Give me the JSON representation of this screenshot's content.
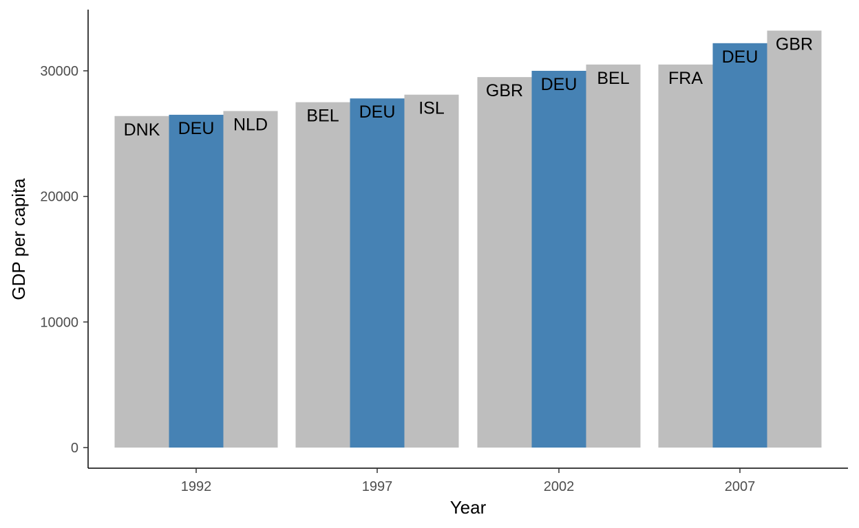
{
  "chart_data": {
    "type": "bar",
    "title": "",
    "xlabel": "Year",
    "ylabel": "GDP per capita",
    "ylim": [
      0,
      34000
    ],
    "yticks": [
      0,
      10000,
      20000,
      30000
    ],
    "grid": false,
    "legend": "none",
    "highlight_color": "#4682b4",
    "other_color": "#bebebe",
    "groups": [
      {
        "year": "1992",
        "bars": [
          {
            "country": "DNK",
            "value": 26400,
            "highlight": false
          },
          {
            "country": "DEU",
            "value": 26500,
            "highlight": true
          },
          {
            "country": "NLD",
            "value": 26800,
            "highlight": false
          }
        ]
      },
      {
        "year": "1997",
        "bars": [
          {
            "country": "BEL",
            "value": 27500,
            "highlight": false
          },
          {
            "country": "DEU",
            "value": 27800,
            "highlight": true
          },
          {
            "country": "ISL",
            "value": 28100,
            "highlight": false
          }
        ]
      },
      {
        "year": "2002",
        "bars": [
          {
            "country": "GBR",
            "value": 29500,
            "highlight": false
          },
          {
            "country": "DEU",
            "value": 30000,
            "highlight": true
          },
          {
            "country": "BEL",
            "value": 30500,
            "highlight": false
          }
        ]
      },
      {
        "year": "2007",
        "bars": [
          {
            "country": "FRA",
            "value": 30500,
            "highlight": false
          },
          {
            "country": "DEU",
            "value": 32200,
            "highlight": true
          },
          {
            "country": "GBR",
            "value": 33200,
            "highlight": false
          }
        ]
      }
    ]
  }
}
